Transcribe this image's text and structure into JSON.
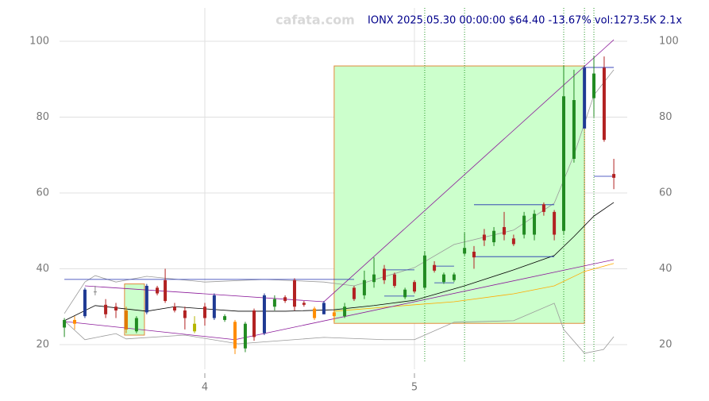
{
  "chart_data": {
    "type": "candlestick",
    "title": "IONX 2025.05.30 00:00:00 $64.40 -13.67% vol:1273.5K 2.1x",
    "watermark": "cafata.com",
    "xlim": [
      3.307,
      6.015
    ],
    "xticks": [
      4,
      5
    ],
    "ylim": [
      13.5,
      108.8
    ],
    "yticks": [
      20,
      40,
      60,
      80,
      100
    ],
    "grid": true,
    "candles": {
      "x": [
        3.33,
        3.379,
        3.428,
        3.477,
        3.527,
        3.576,
        3.625,
        3.674,
        3.723,
        3.773,
        3.811,
        3.856,
        3.905,
        3.951,
        4.0,
        4.045,
        4.095,
        4.144,
        4.193,
        4.235,
        4.284,
        4.333,
        4.383,
        4.428,
        4.473,
        4.523,
        4.568,
        4.617,
        4.667,
        4.712,
        4.761,
        4.807,
        4.856,
        4.905,
        4.955,
        5.0,
        5.049,
        5.095,
        5.14,
        5.189,
        5.239,
        5.284,
        5.333,
        5.379,
        5.428,
        5.473,
        5.523,
        5.572,
        5.617,
        5.667,
        5.712,
        5.761,
        5.811,
        5.856,
        5.905,
        5.951
      ],
      "open": [
        24.5,
        26.5,
        27.5,
        34,
        30.5,
        30,
        29,
        23.5,
        28.5,
        35,
        37,
        30,
        29,
        23.5,
        30,
        27,
        26.5,
        26,
        19,
        29,
        23,
        30,
        32.5,
        37,
        31,
        29.5,
        28,
        28.5,
        27.5,
        35,
        33,
        36.5,
        40,
        38.5,
        32.5,
        36.5,
        35,
        41,
        36.5,
        37,
        44,
        44.5,
        49,
        47,
        51,
        48,
        49,
        49,
        57,
        55,
        50,
        69,
        77,
        85,
        93,
        65
      ],
      "high": [
        27,
        27.5,
        35,
        35.5,
        32,
        31,
        30,
        27.5,
        36,
        35.5,
        40,
        31,
        30,
        27.5,
        31,
        33.5,
        28,
        26.5,
        26,
        29.5,
        33.5,
        33,
        33,
        37.5,
        31.5,
        30,
        31.5,
        29,
        31,
        35.5,
        39.5,
        43,
        41,
        39,
        35,
        37,
        44.5,
        42,
        39,
        39,
        49.5,
        46,
        50.5,
        51,
        55,
        49,
        55,
        55.5,
        57.5,
        55.5,
        93.5,
        92.5,
        93.5,
        96,
        96,
        69
      ],
      "low": [
        22,
        24,
        27,
        33,
        27,
        27,
        23,
        23,
        28,
        33,
        31,
        28.5,
        24,
        23,
        25,
        26.5,
        26,
        17.5,
        18,
        21,
        22.5,
        29,
        31,
        29,
        30,
        26.5,
        28,
        26,
        27,
        31.5,
        32,
        35,
        36,
        35,
        32,
        33.5,
        34.5,
        39,
        36,
        36.5,
        43.5,
        40,
        46,
        46,
        47.5,
        46,
        48,
        47.5,
        54,
        47.5,
        49,
        68,
        77,
        80,
        73.5,
        61
      ],
      "close": [
        26.5,
        25.5,
        34.5,
        34,
        28,
        29,
        24,
        27,
        35.5,
        33.5,
        31.5,
        29,
        27,
        25.5,
        27,
        33,
        27.5,
        19,
        25.5,
        22,
        33,
        32,
        31.5,
        30,
        30.5,
        27,
        31,
        27.5,
        30,
        32,
        37,
        38.5,
        37,
        35.5,
        34.5,
        34,
        43.5,
        39.5,
        38.5,
        38.5,
        45.5,
        43,
        47.5,
        50,
        49,
        46.5,
        54,
        54.5,
        55,
        49,
        85.5,
        84.5,
        93,
        91.5,
        74,
        64
      ],
      "colors": [
        "#228b22",
        "#ff8c00",
        "#1f3a93",
        "#888888",
        "#b22222",
        "#b22222",
        "#e07b00",
        "#228b22",
        "#1f3a93",
        "#b22222",
        "#b22222",
        "#b22222",
        "#b22222",
        "#b5b500",
        "#b22222",
        "#1f3a93",
        "#228b22",
        "#ff8c00",
        "#228b22",
        "#b22222",
        "#1f3a93",
        "#228b22",
        "#b22222",
        "#b22222",
        "#b22222",
        "#ff8c00",
        "#1f3a93",
        "#ff8c00",
        "#228b22",
        "#b22222",
        "#228b22",
        "#228b22",
        "#b22222",
        "#b22222",
        "#228b22",
        "#b22222",
        "#228b22",
        "#b22222",
        "#228b22",
        "#228b22",
        "#228b22",
        "#b22222",
        "#b22222",
        "#228b22",
        "#b22222",
        "#b22222",
        "#228b22",
        "#228b22",
        "#b22222",
        "#b22222",
        "#228b22",
        "#228b22",
        "#1f3a93",
        "#228b22",
        "#b22222",
        "#b22222"
      ]
    },
    "rects": [
      {
        "x": [
          4.617,
          5.811
        ],
        "y": [
          25.6,
          93.5
        ],
        "color": "#ccffcc"
      },
      {
        "x": [
          3.617,
          3.712
        ],
        "y": [
          22.5,
          36
        ],
        "color": "#ccffcc"
      }
    ],
    "markers_x": [
      5.049,
      5.239,
      5.712,
      5.811,
      5.856
    ],
    "lines": [
      {
        "color": "#000000",
        "x": [
          3.33,
          3.477,
          3.723,
          3.856,
          4.159,
          4.386,
          4.617,
          4.807,
          5.0,
          5.239,
          5.473,
          5.667,
          5.761,
          5.856,
          5.951
        ],
        "values": [
          26.3,
          30.3,
          28.8,
          30,
          28.8,
          28.8,
          29.2,
          30.3,
          31.7,
          35.5,
          39.7,
          43.5,
          48.5,
          53.9,
          57.5
        ]
      },
      {
        "color": "#ffaa00",
        "x": [
          4.617,
          5.0,
          5.189,
          5.473,
          5.667,
          5.811,
          5.951
        ],
        "values": [
          28.8,
          30.5,
          31.3,
          33.4,
          35.5,
          39.3,
          41.4
        ]
      },
      {
        "color": "#999999",
        "x": [
          3.33,
          3.428,
          3.477,
          3.576,
          3.723,
          4.0,
          4.284,
          4.568,
          4.712,
          5.0,
          5.189,
          5.473,
          5.667,
          5.761,
          5.856,
          5.951
        ],
        "values": [
          28.2,
          36.5,
          38.2,
          36.5,
          38,
          36.5,
          37.2,
          36.5,
          35.5,
          40.3,
          46.4,
          50.2,
          57.3,
          70,
          85.8,
          92.5
        ]
      },
      {
        "color": "#999999",
        "x": [
          3.33,
          3.428,
          3.576,
          3.625,
          3.905,
          4.159,
          4.568,
          4.856,
          5.0,
          5.189,
          5.473,
          5.667,
          5.712,
          5.811,
          5.902,
          5.951
        ],
        "values": [
          26.3,
          21.3,
          22.9,
          21.5,
          22.5,
          20.2,
          21.9,
          21.3,
          21.3,
          25.9,
          26.3,
          30.9,
          24,
          17.7,
          18.7,
          22.1
        ]
      },
      {
        "color": "#8b1a9a",
        "x": [
          3.33,
          4.144
        ],
        "values": [
          26.1,
          21.3
        ]
      },
      {
        "color": "#8b1a9a",
        "x": [
          3.428,
          4.568
        ],
        "values": [
          35.5,
          31.3
        ]
      },
      {
        "color": "#8b1a9a",
        "x": [
          4.144,
          5.951
        ],
        "values": [
          21.3,
          42.4
        ]
      },
      {
        "color": "#8b1a9a",
        "x": [
          4.568,
          5.951
        ],
        "values": [
          31.3,
          100.4
        ]
      },
      {
        "color": "#1f2fb0",
        "x": [
          3.33,
          4.712
        ],
        "values": [
          37.2,
          37.2
        ]
      },
      {
        "color": "#1f2fb0",
        "x": [
          4.856,
          5.0
        ],
        "values": [
          39.7,
          39.7
        ]
      },
      {
        "color": "#1f2fb0",
        "x": [
          4.856,
          5.0
        ],
        "values": [
          32.8,
          32.8
        ]
      },
      {
        "color": "#1f2fb0",
        "x": [
          5.095,
          5.189
        ],
        "values": [
          40.7,
          40.7
        ]
      },
      {
        "color": "#1f2fb0",
        "x": [
          5.095,
          5.189
        ],
        "values": [
          36.3,
          36.3
        ]
      },
      {
        "color": "#1f2fb0",
        "x": [
          5.284,
          5.667
        ],
        "values": [
          56.9,
          56.9
        ]
      },
      {
        "color": "#1f2fb0",
        "x": [
          5.284,
          5.667
        ],
        "values": [
          43.2,
          43.2
        ]
      },
      {
        "color": "#1f2fb0",
        "x": [
          5.811,
          5.951
        ],
        "values": [
          93.1,
          93.1
        ]
      },
      {
        "color": "#1f2fb0",
        "x": [
          5.856,
          5.951
        ],
        "values": [
          64.4,
          64.4
        ]
      }
    ]
  }
}
